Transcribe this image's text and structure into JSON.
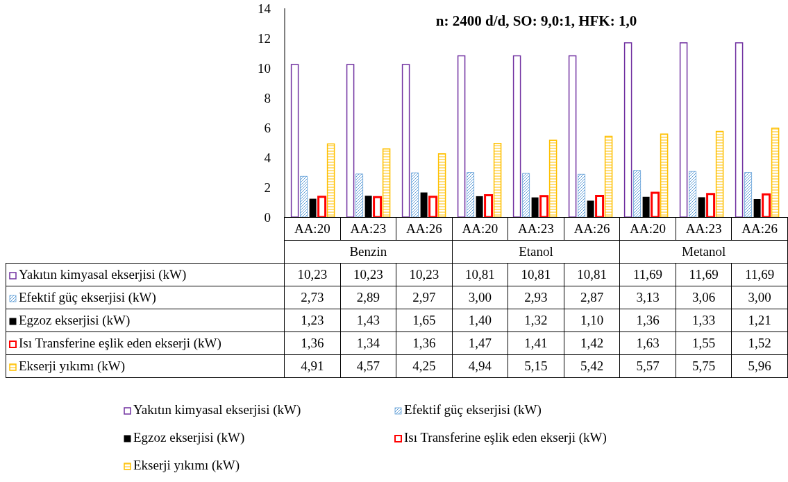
{
  "chart_data": {
    "type": "bar",
    "title": "n: 2400 d/d, SO: 9,0:1, HFK: 1,0",
    "categories": [
      "AA:20",
      "AA:23",
      "AA:26",
      "AA:20",
      "AA:23",
      "AA:26",
      "AA:20",
      "AA:23",
      "AA:26"
    ],
    "annotations": [
      "Benzin",
      "Etanol",
      "Metanol"
    ],
    "series": [
      {
        "name": "Yakıtın kimyasal ekserjisi (kW)",
        "color": "#7030a0",
        "values": [
          10.23,
          10.23,
          10.23,
          10.81,
          10.81,
          10.81,
          11.69,
          11.69,
          11.69
        ],
        "value_labels": [
          "10,23",
          "10,23",
          "10,23",
          "10,81",
          "10,81",
          "10,81",
          "11,69",
          "11,69",
          "11,69"
        ]
      },
      {
        "name": "Efektif güç ekserjisi (kW)",
        "color": "#5b9bd5",
        "values": [
          2.73,
          2.89,
          2.97,
          3.0,
          2.93,
          2.87,
          3.13,
          3.06,
          3.0
        ],
        "value_labels": [
          "2,73",
          "2,89",
          "2,97",
          "3,00",
          "2,93",
          "2,87",
          "3,13",
          "3,06",
          "3,00"
        ]
      },
      {
        "name": "Egzoz ekserjisi (kW)",
        "color": "#000000",
        "values": [
          1.23,
          1.43,
          1.65,
          1.4,
          1.32,
          1.1,
          1.36,
          1.33,
          1.21
        ],
        "value_labels": [
          "1,23",
          "1,43",
          "1,65",
          "1,40",
          "1,32",
          "1,10",
          "1,36",
          "1,33",
          "1,21"
        ]
      },
      {
        "name": "Isı Transferine eşlik eden ekserji (kW)",
        "color": "#ff0000",
        "values": [
          1.36,
          1.34,
          1.36,
          1.47,
          1.41,
          1.42,
          1.63,
          1.55,
          1.52
        ],
        "value_labels": [
          "1,36",
          "1,34",
          "1,36",
          "1,47",
          "1,41",
          "1,42",
          "1,63",
          "1,55",
          "1,52"
        ]
      },
      {
        "name": "Ekserji yıkımı (kW)",
        "color": "#ffc000",
        "values": [
          4.91,
          4.57,
          4.25,
          4.94,
          5.15,
          5.42,
          5.57,
          5.75,
          5.96
        ],
        "value_labels": [
          "4,91",
          "4,57",
          "4,25",
          "4,94",
          "5,15",
          "5,42",
          "5,57",
          "5,75",
          "5,96"
        ]
      }
    ],
    "ylim": [
      0,
      14
    ],
    "yticks": [
      0,
      2,
      4,
      6,
      8,
      10,
      12,
      14
    ],
    "legend": "bottom"
  }
}
